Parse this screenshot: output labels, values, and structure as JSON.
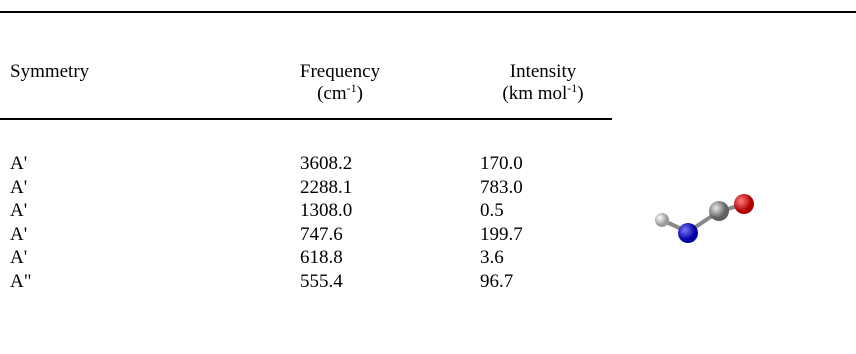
{
  "table": {
    "header": [
      {
        "label": "Symmetry"
      },
      {
        "label": "Frequency",
        "unit_prefix": "(cm",
        "unit_sup": "-1",
        "unit_suffix": ")"
      },
      {
        "label": "Intensity",
        "unit_prefix": "(km mol",
        "unit_sup": "-1",
        "unit_suffix": ")"
      }
    ],
    "rows": [
      [
        "A'",
        "3608.2",
        "170.0"
      ],
      [
        "A'",
        "2288.1",
        "783.0"
      ],
      [
        "A'",
        "1308.0",
        "0.5"
      ],
      [
        "A'",
        "747.6",
        "199.7"
      ],
      [
        "A'",
        "618.8",
        "3.6"
      ],
      [
        "A\"",
        "555.4",
        "96.7"
      ]
    ]
  }
}
